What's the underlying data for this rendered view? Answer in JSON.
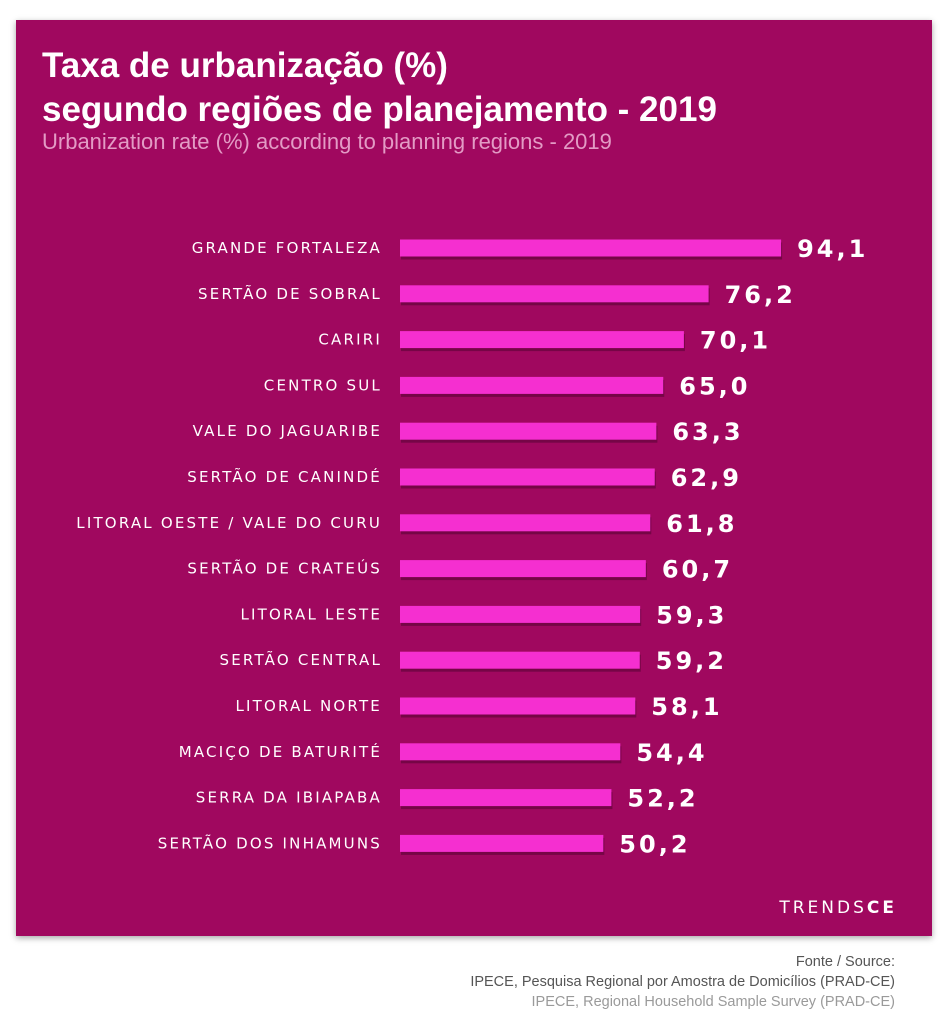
{
  "chart": {
    "title_line1": "Taxa de urbanização (%)",
    "title_line2": "segundo regiões de planejamento - 2019",
    "subtitle": "Urbanization rate (%) according to planning regions - 2019"
  },
  "chart_data": {
    "type": "bar",
    "orientation": "horizontal",
    "title": "Taxa de urbanização (%) segundo regiões de planejamento - 2019",
    "subtitle": "Urbanization rate (%) according to planning regions - 2019",
    "categories": [
      "GRANDE FORTALEZA",
      "SERTÃO DE SOBRAL",
      "CARIRI",
      "CENTRO SUL",
      "VALE DO JAGUARIBE",
      "SERTÃO DE CANINDÉ",
      "LITORAL OESTE / VALE DO CURU",
      "SERTÃO DE CRATEÚS",
      "LITORAL LESTE",
      "SERTÃO CENTRAL",
      "LITORAL NORTE",
      "MACIÇO DE BATURITÉ",
      "SERRA DA IBIAPABA",
      "SERTÃO DOS INHAMUNS"
    ],
    "values": [
      94.1,
      76.2,
      70.1,
      65.0,
      63.3,
      62.9,
      61.8,
      60.7,
      59.3,
      59.2,
      58.1,
      54.4,
      52.2,
      50.2
    ],
    "value_labels": [
      "94,1",
      "76,2",
      "70,1",
      "65,0",
      "63,3",
      "62,9",
      "61,8",
      "60,7",
      "59,3",
      "59,2",
      "58,1",
      "54,4",
      "52,2",
      "50,2"
    ],
    "xlabel": "",
    "ylabel": "",
    "grid": false,
    "legend": "none",
    "colors": {
      "background": "#a0085f",
      "bar": "#f52fd0",
      "text": "#ffffff",
      "subtitle": "#e39bc5"
    }
  },
  "brand": {
    "part1": "TRENDS",
    "part2": "CE"
  },
  "source": {
    "line1": "Fonte / Source:",
    "line2": "IPECE, Pesquisa Regional por Amostra de Domicílios (PRAD-CE)",
    "line3": "IPECE, Regional Household Sample Survey (PRAD-CE)"
  }
}
